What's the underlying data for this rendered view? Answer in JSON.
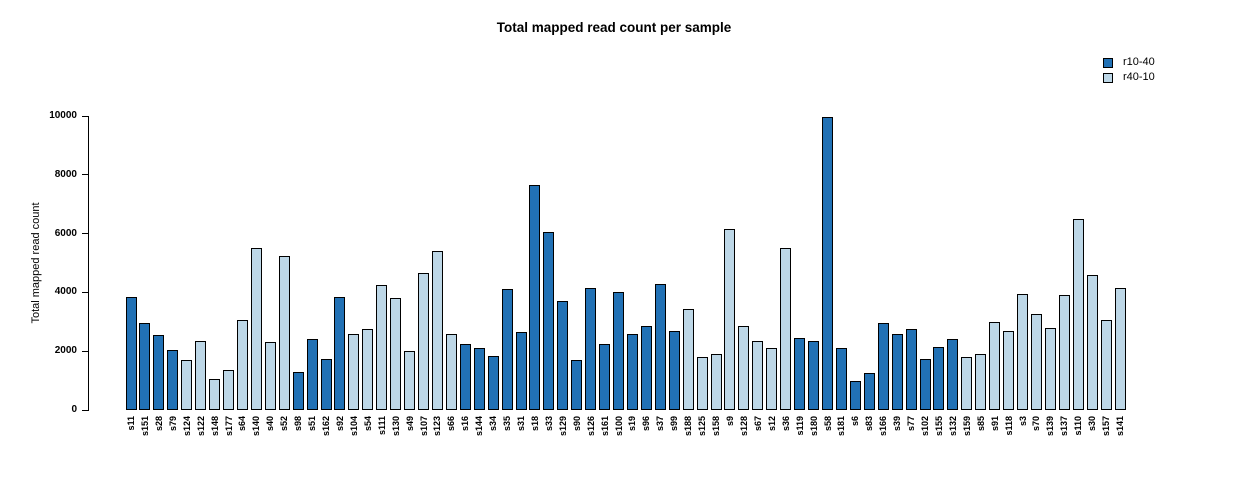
{
  "title": "Total mapped read count per sample",
  "legend": [
    {
      "label": "r10-40",
      "color": "#2171B5"
    },
    {
      "label": "r40-10",
      "color": "#BDD7E7"
    }
  ],
  "chart_data": {
    "type": "bar",
    "title": "Total mapped read count per sample",
    "xlabel": "",
    "ylabel": "Total mapped read count",
    "ylim": [
      0,
      10000
    ],
    "yticks": [
      0,
      2000,
      4000,
      6000,
      8000,
      10000
    ],
    "grid": false,
    "legend_position": "top-right",
    "series_key": {
      "r10-40": "#2171B5",
      "r40-10": "#BDD7E7"
    },
    "samples": [
      {
        "label": "s11",
        "value": 3850,
        "group": "r10-40"
      },
      {
        "label": "s151",
        "value": 2950,
        "group": "r10-40"
      },
      {
        "label": "s28",
        "value": 2550,
        "group": "r10-40"
      },
      {
        "label": "s79",
        "value": 2050,
        "group": "r10-40"
      },
      {
        "label": "s124",
        "value": 1700,
        "group": "r40-10"
      },
      {
        "label": "s122",
        "value": 2350,
        "group": "r40-10"
      },
      {
        "label": "s148",
        "value": 1050,
        "group": "r40-10"
      },
      {
        "label": "s177",
        "value": 1350,
        "group": "r40-10"
      },
      {
        "label": "s64",
        "value": 3050,
        "group": "r40-10"
      },
      {
        "label": "s140",
        "value": 5500,
        "group": "r40-10"
      },
      {
        "label": "s40",
        "value": 2300,
        "group": "r40-10"
      },
      {
        "label": "s52",
        "value": 5250,
        "group": "r40-10"
      },
      {
        "label": "s98",
        "value": 1300,
        "group": "r10-40"
      },
      {
        "label": "s51",
        "value": 2400,
        "group": "r10-40"
      },
      {
        "label": "s162",
        "value": 1750,
        "group": "r10-40"
      },
      {
        "label": "s92",
        "value": 3850,
        "group": "r10-40"
      },
      {
        "label": "s104",
        "value": 2600,
        "group": "r40-10"
      },
      {
        "label": "s54",
        "value": 2750,
        "group": "r40-10"
      },
      {
        "label": "s111",
        "value": 4250,
        "group": "r40-10"
      },
      {
        "label": "s130",
        "value": 3800,
        "group": "r40-10"
      },
      {
        "label": "s49",
        "value": 2000,
        "group": "r40-10"
      },
      {
        "label": "s107",
        "value": 4650,
        "group": "r40-10"
      },
      {
        "label": "s123",
        "value": 5400,
        "group": "r40-10"
      },
      {
        "label": "s66",
        "value": 2600,
        "group": "r40-10"
      },
      {
        "label": "s16",
        "value": 2250,
        "group": "r10-40"
      },
      {
        "label": "s144",
        "value": 2100,
        "group": "r10-40"
      },
      {
        "label": "s34",
        "value": 1850,
        "group": "r10-40"
      },
      {
        "label": "s35",
        "value": 4100,
        "group": "r10-40"
      },
      {
        "label": "s31",
        "value": 2650,
        "group": "r10-40"
      },
      {
        "label": "s18",
        "value": 7650,
        "group": "r10-40"
      },
      {
        "label": "s33",
        "value": 6050,
        "group": "r10-40"
      },
      {
        "label": "s129",
        "value": 3700,
        "group": "r10-40"
      },
      {
        "label": "s90",
        "value": 1700,
        "group": "r10-40"
      },
      {
        "label": "s126",
        "value": 4150,
        "group": "r10-40"
      },
      {
        "label": "s161",
        "value": 2250,
        "group": "r10-40"
      },
      {
        "label": "s100",
        "value": 4000,
        "group": "r10-40"
      },
      {
        "label": "s19",
        "value": 2600,
        "group": "r10-40"
      },
      {
        "label": "s96",
        "value": 2850,
        "group": "r10-40"
      },
      {
        "label": "s37",
        "value": 4300,
        "group": "r10-40"
      },
      {
        "label": "s99",
        "value": 2700,
        "group": "r10-40"
      },
      {
        "label": "s188",
        "value": 3450,
        "group": "r40-10"
      },
      {
        "label": "s125",
        "value": 1800,
        "group": "r40-10"
      },
      {
        "label": "s158",
        "value": 1900,
        "group": "r40-10"
      },
      {
        "label": "s9",
        "value": 6150,
        "group": "r40-10"
      },
      {
        "label": "s128",
        "value": 2850,
        "group": "r40-10"
      },
      {
        "label": "s67",
        "value": 2350,
        "group": "r40-10"
      },
      {
        "label": "s12",
        "value": 2100,
        "group": "r40-10"
      },
      {
        "label": "s36",
        "value": 5500,
        "group": "r40-10"
      },
      {
        "label": "s119",
        "value": 2450,
        "group": "r10-40"
      },
      {
        "label": "s180",
        "value": 2350,
        "group": "r10-40"
      },
      {
        "label": "s58",
        "value": 9950,
        "group": "r10-40"
      },
      {
        "label": "s181",
        "value": 2100,
        "group": "r10-40"
      },
      {
        "label": "s6",
        "value": 1000,
        "group": "r10-40"
      },
      {
        "label": "s83",
        "value": 1250,
        "group": "r10-40"
      },
      {
        "label": "s166",
        "value": 2950,
        "group": "r10-40"
      },
      {
        "label": "s39",
        "value": 2600,
        "group": "r10-40"
      },
      {
        "label": "s77",
        "value": 2750,
        "group": "r10-40"
      },
      {
        "label": "s102",
        "value": 1750,
        "group": "r10-40"
      },
      {
        "label": "s155",
        "value": 2150,
        "group": "r10-40"
      },
      {
        "label": "s132",
        "value": 2400,
        "group": "r10-40"
      },
      {
        "label": "s159",
        "value": 1800,
        "group": "r40-10"
      },
      {
        "label": "s85",
        "value": 1900,
        "group": "r40-10"
      },
      {
        "label": "s91",
        "value": 3000,
        "group": "r40-10"
      },
      {
        "label": "s118",
        "value": 2700,
        "group": "r40-10"
      },
      {
        "label": "s3",
        "value": 3950,
        "group": "r40-10"
      },
      {
        "label": "s70",
        "value": 3250,
        "group": "r40-10"
      },
      {
        "label": "s139",
        "value": 2800,
        "group": "r40-10"
      },
      {
        "label": "s137",
        "value": 3900,
        "group": "r40-10"
      },
      {
        "label": "s110",
        "value": 6500,
        "group": "r40-10"
      },
      {
        "label": "s30",
        "value": 4600,
        "group": "r40-10"
      },
      {
        "label": "s157",
        "value": 3050,
        "group": "r40-10"
      },
      {
        "label": "s141",
        "value": 4150,
        "group": "r40-10"
      }
    ]
  }
}
